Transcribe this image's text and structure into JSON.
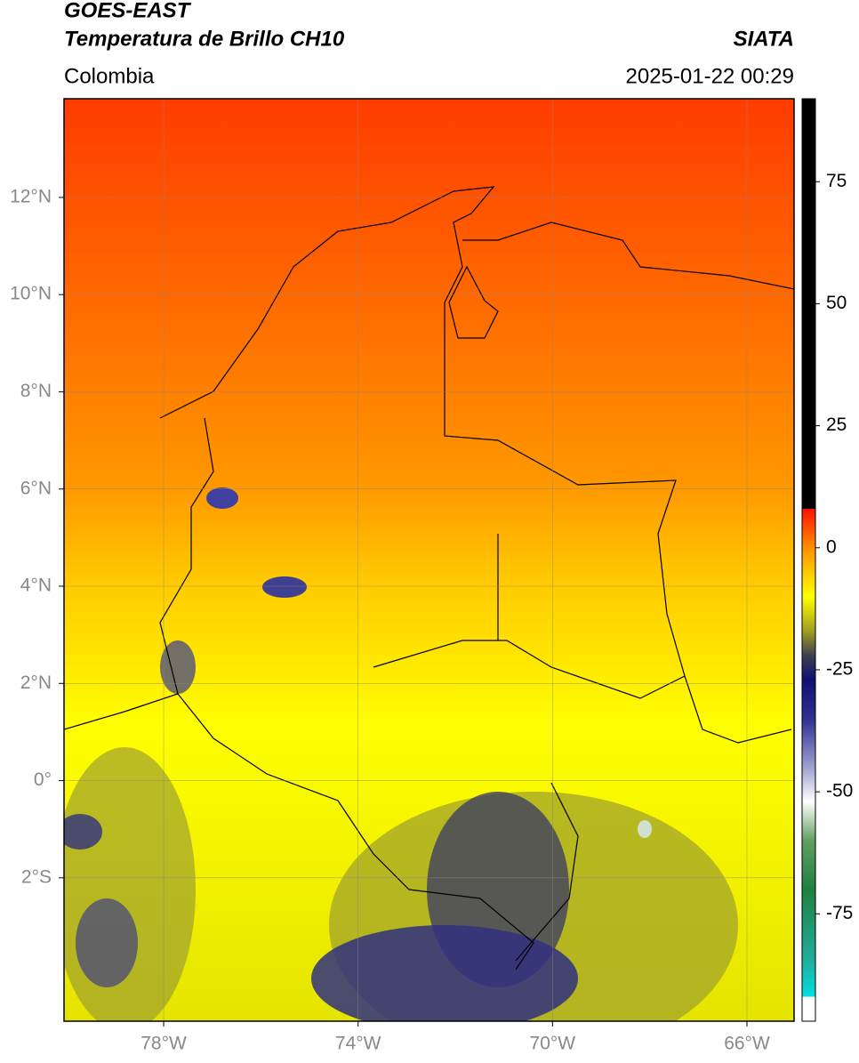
{
  "header": {
    "title": "GOES-EAST",
    "subtitle": "Temperatura de Brillo CH10",
    "source": "SIATA",
    "region": "Colombia",
    "datetime": "2025-01-22 00:29"
  },
  "map": {
    "xlim": [
      -80.05,
      -65.03
    ],
    "ylim": [
      -4.95,
      14.03
    ],
    "xticks": [
      {
        "value": -78,
        "label": "78°W"
      },
      {
        "value": -74,
        "label": "74°W"
      },
      {
        "value": -70,
        "label": "70°W"
      },
      {
        "value": -66,
        "label": "66°W"
      }
    ],
    "yticks": [
      {
        "value": 12,
        "label": "12°N"
      },
      {
        "value": 10,
        "label": "10°N"
      },
      {
        "value": 8,
        "label": "8°N"
      },
      {
        "value": 6,
        "label": "6°N"
      },
      {
        "value": 4,
        "label": "4°N"
      },
      {
        "value": 2,
        "label": "2°N"
      },
      {
        "value": 0,
        "label": "0°"
      },
      {
        "value": -2,
        "label": "2°S"
      }
    ],
    "grid": true
  },
  "colorbar": {
    "clim": [
      -97,
      92
    ],
    "ticks": [
      75,
      50,
      25,
      0,
      -25,
      -50,
      -75
    ],
    "colormap": [
      {
        "value": -97,
        "color": "#ffffff"
      },
      {
        "value": -92,
        "color": "#ffffff"
      },
      {
        "value": -92,
        "color": "#00e0e0"
      },
      {
        "value": -85,
        "color": "#20b0a0"
      },
      {
        "value": -70,
        "color": "#208040"
      },
      {
        "value": -60,
        "color": "#60a060"
      },
      {
        "value": -52,
        "color": "#ffffff"
      },
      {
        "value": -45,
        "color": "#a0a0d0"
      },
      {
        "value": -35,
        "color": "#303090"
      },
      {
        "value": -27,
        "color": "#101070"
      },
      {
        "value": -22,
        "color": "#404050"
      },
      {
        "value": -17,
        "color": "#a0a020"
      },
      {
        "value": -10,
        "color": "#ffff00"
      },
      {
        "value": 0,
        "color": "#ff9000"
      },
      {
        "value": 8,
        "color": "#ff1000"
      },
      {
        "value": 8,
        "color": "#000000"
      },
      {
        "value": 92,
        "color": "#000000"
      }
    ]
  }
}
